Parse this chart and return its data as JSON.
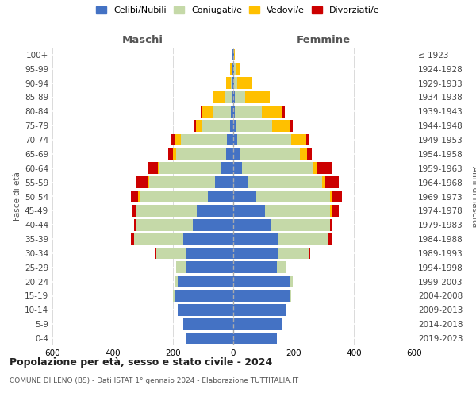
{
  "age_groups": [
    "0-4",
    "5-9",
    "10-14",
    "15-19",
    "20-24",
    "25-29",
    "30-34",
    "35-39",
    "40-44",
    "45-49",
    "50-54",
    "55-59",
    "60-64",
    "65-69",
    "70-74",
    "75-79",
    "80-84",
    "85-89",
    "90-94",
    "95-99",
    "100+"
  ],
  "birth_years": [
    "2019-2023",
    "2014-2018",
    "2009-2013",
    "2004-2008",
    "1999-2003",
    "1994-1998",
    "1989-1993",
    "1984-1988",
    "1979-1983",
    "1974-1978",
    "1969-1973",
    "1964-1968",
    "1959-1963",
    "1954-1958",
    "1949-1953",
    "1944-1948",
    "1939-1943",
    "1934-1938",
    "1929-1933",
    "1924-1928",
    "≤ 1923"
  ],
  "colors": {
    "celibi": "#4472c4",
    "coniugati": "#c5d9a8",
    "vedovi": "#ffc000",
    "divorziati": "#cc0000"
  },
  "maschi": {
    "celibi": [
      155,
      165,
      185,
      195,
      185,
      155,
      155,
      165,
      135,
      120,
      85,
      60,
      40,
      25,
      20,
      10,
      8,
      5,
      3,
      3,
      2
    ],
    "coniugati": [
      0,
      0,
      0,
      5,
      10,
      35,
      100,
      165,
      185,
      200,
      225,
      220,
      205,
      165,
      155,
      95,
      60,
      25,
      5,
      2,
      0
    ],
    "vedovi": [
      0,
      0,
      0,
      0,
      0,
      0,
      0,
      0,
      0,
      0,
      5,
      5,
      5,
      10,
      20,
      20,
      35,
      35,
      15,
      5,
      0
    ],
    "divorziati": [
      0,
      0,
      0,
      0,
      0,
      0,
      5,
      10,
      10,
      15,
      25,
      35,
      35,
      15,
      10,
      5,
      5,
      0,
      0,
      0,
      0
    ]
  },
  "femmine": {
    "celibi": [
      145,
      160,
      175,
      190,
      190,
      145,
      150,
      150,
      125,
      105,
      75,
      50,
      30,
      20,
      12,
      8,
      5,
      5,
      3,
      2,
      2
    ],
    "coniugati": [
      0,
      0,
      0,
      3,
      8,
      30,
      100,
      165,
      195,
      215,
      245,
      245,
      235,
      200,
      180,
      120,
      90,
      35,
      10,
      5,
      0
    ],
    "vedovi": [
      0,
      0,
      0,
      0,
      0,
      0,
      0,
      0,
      0,
      5,
      10,
      10,
      15,
      25,
      50,
      60,
      65,
      80,
      50,
      15,
      3
    ],
    "divorziati": [
      0,
      0,
      0,
      0,
      0,
      0,
      5,
      10,
      10,
      25,
      30,
      45,
      45,
      15,
      10,
      10,
      10,
      0,
      0,
      0,
      0
    ]
  },
  "xlim": 600,
  "xlabel_left": "Maschi",
  "xlabel_right": "Femmine",
  "ylabel_left": "Fasce di età",
  "ylabel_right": "Anni di nascita",
  "title": "Popolazione per età, sesso e stato civile - 2024",
  "subtitle": "COMUNE DI LENO (BS) - Dati ISTAT 1° gennaio 2024 - Elaborazione TUTTITALIA.IT",
  "legend_labels": [
    "Celibi/Nubili",
    "Coniugati/e",
    "Vedovi/e",
    "Divorziati/e"
  ],
  "background_color": "#ffffff",
  "grid_color": "#cccccc"
}
